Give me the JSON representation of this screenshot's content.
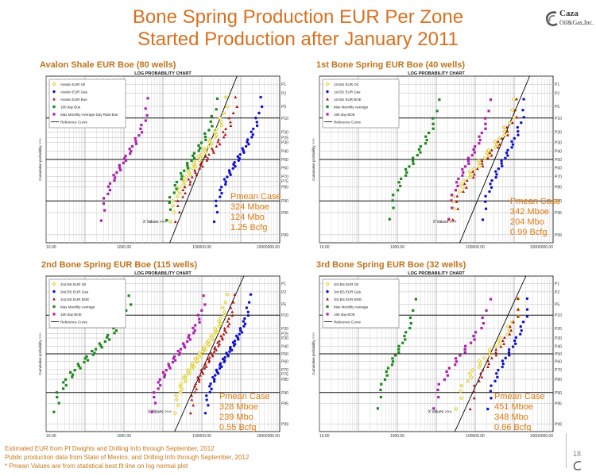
{
  "title_line1": "Bone Spring Production EUR Per Zone",
  "title_line2": "Started Production after January 2011",
  "logo": {
    "text": "Caza",
    "sub": "Oil&Gas,Inc."
  },
  "footnotes": [
    "Estimated EUR from PI Dwights and Drilling Info through September, 2012",
    "Public production data from State of Mexico, and Drilling Info through September, 2012",
    "* Pmean Values are from statistical best fit line on log normal plot"
  ],
  "page_number": "18",
  "colors": {
    "title": "#d9701f",
    "pmean": "#e07a10",
    "purple": "#b020b0",
    "green": "#1e8a1e",
    "yellow": "#d8c800",
    "red": "#b01010",
    "blue": "#1010d0"
  },
  "chart_data": [
    {
      "type": "scatter",
      "panel_title": "Avalon Shale EUR Boe (80 wells)",
      "chart_title": "LOG PROBABILITY CHART",
      "y_axis_label": "Cumulative probability >>>",
      "x_axis_label": "X Values >>>",
      "x_scale": "log",
      "xlim": [
        10,
        10000000
      ],
      "x_tick_labels": [
        "10.00",
        "1000.00",
        "100000.00",
        "10000000.00"
      ],
      "x_tick_values": [
        10,
        1000,
        100000,
        10000000
      ],
      "y_tick_labels": [
        "P1",
        "P2",
        "P5",
        "P10",
        "P20",
        "P25",
        "P30",
        "P40",
        "P50",
        "P60",
        "P70",
        "P75",
        "P80",
        "P90",
        "P95",
        "P99"
      ],
      "y_tick_values": [
        1,
        2,
        5,
        10,
        20,
        25,
        30,
        40,
        50,
        60,
        70,
        75,
        80,
        90,
        95,
        99
      ],
      "legend_labels": [
        "Avalon EUR Oil",
        "Avalon EUR Gas",
        "Avalon EUR Boe",
        "180 day Boe",
        "Max Monthly Average Day Rate Boe",
        "Reference Curve"
      ],
      "pmean_label": "Pmean Case",
      "pmean_values": [
        "324 Mboe",
        "124 Mbo",
        "1.25 Bcfg"
      ],
      "series": [
        {
          "name": "Avalon EUR Oil",
          "color": "#d8c800",
          "marker": "diamond",
          "x_range": [
            15000,
            450000
          ],
          "n": 40
        },
        {
          "name": "Avalon EUR Gas",
          "color": "#1010d0",
          "marker": "circle",
          "x_range": [
            200000,
            3500000
          ],
          "n": 40
        },
        {
          "name": "Avalon EUR Boe",
          "color": "#b01010",
          "marker": "triangle",
          "x_range": [
            20000,
            800000
          ],
          "n": 40
        },
        {
          "name": "180 day Boe",
          "color": "#1e8a1e",
          "marker": "square",
          "x_range": [
            12000,
            250000
          ],
          "n": 32
        },
        {
          "name": "Max Monthly Average Day Rate Boe",
          "color": "#b020b0",
          "marker": "square",
          "x_range": [
            250,
            4500
          ],
          "n": 34
        }
      ],
      "reference_x_range": [
        15000,
        800000
      ]
    },
    {
      "type": "scatter",
      "panel_title": "1st Bone Spring EUR Boe (40 wells)",
      "chart_title": "LOG PROBABILITY CHART",
      "y_axis_label": "Cumulative probability >>>",
      "x_axis_label": "X Values >>>",
      "x_scale": "log",
      "xlim": [
        10,
        10000000
      ],
      "x_tick_labels": [
        "10.00",
        "1000.00",
        "100000.00",
        "10000000.00"
      ],
      "x_tick_values": [
        10,
        1000,
        100000,
        10000000
      ],
      "y_tick_labels": [
        "P1",
        "P2",
        "P5",
        "P10",
        "P20",
        "P30",
        "P40",
        "P50",
        "P60",
        "P70",
        "P80",
        "P90",
        "P95",
        "P99"
      ],
      "y_tick_values": [
        1,
        2,
        5,
        10,
        20,
        30,
        40,
        50,
        60,
        70,
        80,
        90,
        95,
        99
      ],
      "legend_labels": [
        "1st BS EUR Oil",
        "1st BS EUR Gas",
        "1st BS EUR BOE",
        "Max Monthly Average",
        "180 day BOE",
        "Reference Curve"
      ],
      "pmean_label": "Pmean Case",
      "pmean_values": [
        "342 Mboe",
        "204 Mbo",
        "0.99 Bcfg"
      ],
      "series": [
        {
          "name": "1st BS EUR Oil",
          "color": "#d8c800",
          "marker": "diamond",
          "x_range": [
            20000,
            1200000
          ],
          "n": 30
        },
        {
          "name": "1st BS EUR Gas",
          "color": "#1010d0",
          "marker": "circle",
          "x_range": [
            150000,
            2000000
          ],
          "n": 30
        },
        {
          "name": "1st BS EUR BOE",
          "color": "#b01010",
          "marker": "triangle",
          "x_range": [
            25000,
            1400000
          ],
          "n": 30
        },
        {
          "name": "Max Monthly Average",
          "color": "#1e8a1e",
          "marker": "square",
          "x_range": [
            600,
            12000
          ],
          "n": 28
        },
        {
          "name": "180 day BOE",
          "color": "#b020b0",
          "marker": "square",
          "x_range": [
            20000,
            250000
          ],
          "n": 28
        }
      ],
      "reference_x_range": [
        40000,
        2500000
      ]
    },
    {
      "type": "scatter",
      "panel_title": "2nd Bone Spring EUR Boe (115 wells)",
      "chart_title": "LOG PROBABILITY CHART",
      "y_axis_label": "Cumulative probability >>>",
      "x_axis_label": "X Values >>>",
      "x_scale": "log",
      "xlim": [
        10,
        10000000
      ],
      "x_tick_labels": [
        "10.00",
        "1000.00",
        "100000.00",
        "10000000.00"
      ],
      "x_tick_values": [
        10,
        1000,
        100000,
        10000000
      ],
      "y_tick_labels": [
        "P1",
        "P2",
        "P5",
        "P10",
        "P20",
        "P25",
        "P30",
        "P40",
        "P50",
        "P60",
        "P70",
        "P75",
        "P80",
        "P90",
        "P95",
        "P99"
      ],
      "y_tick_values": [
        1,
        2,
        5,
        10,
        20,
        25,
        30,
        40,
        50,
        60,
        70,
        75,
        80,
        90,
        95,
        99
      ],
      "legend_labels": [
        "2nd BS EUR Oil",
        "2nd BS EUR Gas",
        "2nd BS EUR BOE",
        "Max Monthly Average",
        "180 day BOE",
        "Reference Curve"
      ],
      "pmean_label": "Pmean Case",
      "pmean_values": [
        "328 Mboe",
        "239 Mbo",
        "0.55 Bcfg"
      ],
      "series": [
        {
          "name": "2nd BS EUR Oil",
          "color": "#d8c800",
          "marker": "diamond",
          "x_range": [
            20000,
            450000
          ],
          "n": 50
        },
        {
          "name": "2nd BS EUR Gas",
          "color": "#1010d0",
          "marker": "circle",
          "x_range": [
            120000,
            1800000
          ],
          "n": 50
        },
        {
          "name": "2nd BS EUR BOE",
          "color": "#b01010",
          "marker": "triangle",
          "x_range": [
            50000,
            700000
          ],
          "n": 50
        },
        {
          "name": "Max Monthly Average",
          "color": "#1e8a1e",
          "marker": "square",
          "x_range": [
            15,
            1500
          ],
          "n": 40
        },
        {
          "name": "180 day BOE",
          "color": "#b020b0",
          "marker": "square",
          "x_range": [
            5000,
            120000
          ],
          "n": 40
        }
      ],
      "reference_x_range": [
        20000,
        1200000
      ]
    },
    {
      "type": "scatter",
      "panel_title": "3rd Bone Spring EUR Boe (32 wells)",
      "chart_title": "LOG PROBABILITY CHART",
      "y_axis_label": "Cumulative probability >>>",
      "x_axis_label": "X Values >>>",
      "x_scale": "log",
      "xlim": [
        10,
        10000000
      ],
      "x_tick_labels": [
        "10.00",
        "1000.00",
        "100000.00",
        "10000000.00"
      ],
      "x_tick_values": [
        10,
        1000,
        100000,
        10000000
      ],
      "y_tick_labels": [
        "P1",
        "P2",
        "P5",
        "P10",
        "P20",
        "P30",
        "P40",
        "P50",
        "P60",
        "P70",
        "P80",
        "P90",
        "P95",
        "P99"
      ],
      "y_tick_values": [
        1,
        2,
        5,
        10,
        20,
        30,
        40,
        50,
        60,
        70,
        80,
        90,
        95,
        99
      ],
      "legend_labels": [
        "3rd BS EUR Oil",
        "3rd BS EUR Gas",
        "3rd BS EUR BOE",
        "Max Monthly Average",
        "180 day BOE",
        "Reference Curve"
      ],
      "pmean_label": "Pmean Case",
      "pmean_values": [
        "451 Mboe",
        "348 Mbo",
        "0.66 Bcfg"
      ],
      "series": [
        {
          "name": "3rd BS EUR Oil",
          "color": "#d8c800",
          "marker": "diamond",
          "x_range": [
            30000,
            1600000
          ],
          "n": 26
        },
        {
          "name": "3rd BS EUR Gas",
          "color": "#1010d0",
          "marker": "circle",
          "x_range": [
            200000,
            2500000
          ],
          "n": 26
        },
        {
          "name": "3rd BS EUR BOE",
          "color": "#b01010",
          "marker": "triangle",
          "x_range": [
            70000,
            1500000
          ],
          "n": 26
        },
        {
          "name": "Max Monthly Average",
          "color": "#1e8a1e",
          "marker": "square",
          "x_range": [
            300,
            3000
          ],
          "n": 24
        },
        {
          "name": "180 day BOE",
          "color": "#b020b0",
          "marker": "square",
          "x_range": [
            8000,
            250000
          ],
          "n": 24
        }
      ],
      "reference_x_range": [
        30000,
        2000000
      ]
    }
  ]
}
